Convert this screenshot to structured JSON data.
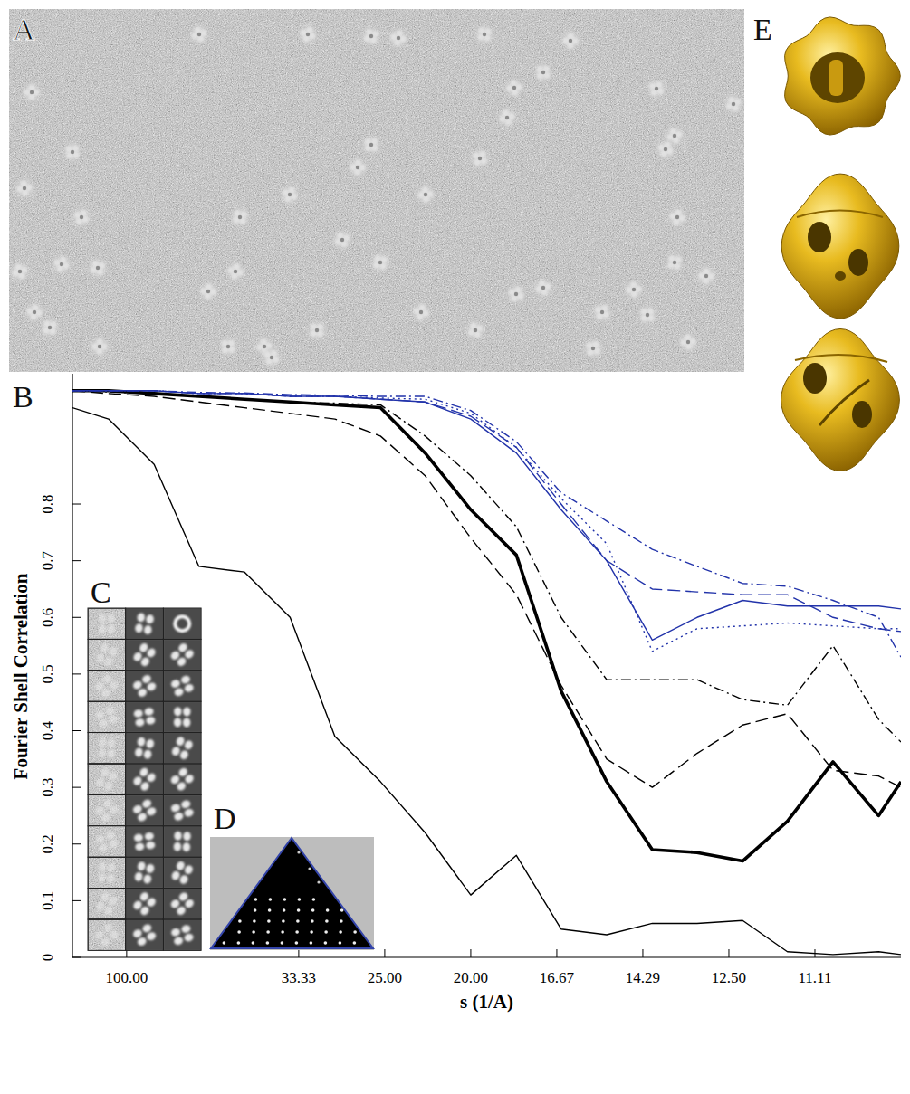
{
  "panel_labels": [
    "A",
    "B",
    "C",
    "D",
    "E"
  ],
  "chart_data": {
    "type": "line",
    "x_label": "s (1/A)",
    "y_label": "Fourier Shell Correlation",
    "xlim": [
      0.0037,
      0.1
    ],
    "ylim": [
      0,
      1.03
    ],
    "xticks": [
      {
        "value": 0.01,
        "label": "100.00"
      },
      {
        "value": 0.03,
        "label": "33.33"
      },
      {
        "value": 0.04,
        "label": "25.00"
      },
      {
        "value": 0.05,
        "label": "20.00"
      },
      {
        "value": 0.06,
        "label": "16.67"
      },
      {
        "value": 0.07,
        "label": "14.29"
      },
      {
        "value": 0.08,
        "label": "12.50"
      },
      {
        "value": 0.09,
        "label": "11.11"
      }
    ],
    "yticks": [
      0,
      0.1,
      0.2,
      0.3,
      0.4,
      0.5,
      0.6,
      0.7,
      0.8
    ],
    "grid": false,
    "x": [
      0.0037,
      0.0079,
      0.0132,
      0.0184,
      0.0237,
      0.029,
      0.0342,
      0.0395,
      0.0447,
      0.05,
      0.0553,
      0.0605,
      0.0658,
      0.0711,
      0.0763,
      0.0816,
      0.0868,
      0.0921,
      0.0974,
      0.1
    ],
    "series": [
      {
        "color": "#000000",
        "line_style": "solid",
        "values": [
          0.97,
          0.95,
          0.87,
          0.69,
          0.68,
          0.6,
          0.39,
          0.31,
          0.22,
          0.11,
          0.18,
          0.05,
          0.04,
          0.06,
          0.06,
          0.065,
          0.01,
          0.005,
          0.01,
          0.005
        ]
      },
      {
        "color": "#000000",
        "line_style": "bold",
        "values": [
          1.0,
          1.0,
          0.995,
          0.99,
          0.985,
          0.98,
          0.975,
          0.97,
          0.89,
          0.79,
          0.71,
          0.47,
          0.31,
          0.19,
          0.185,
          0.17,
          0.24,
          0.345,
          0.25,
          0.31
        ]
      },
      {
        "color": "#000000",
        "line_style": "dashed",
        "values": [
          1.0,
          0.995,
          0.99,
          0.98,
          0.97,
          0.96,
          0.95,
          0.92,
          0.85,
          0.74,
          0.64,
          0.48,
          0.35,
          0.3,
          0.36,
          0.41,
          0.43,
          0.33,
          0.32,
          0.3
        ]
      },
      {
        "color": "#000000",
        "line_style": "dashdot",
        "values": [
          1.0,
          0.998,
          0.995,
          0.99,
          0.985,
          0.98,
          0.978,
          0.975,
          0.92,
          0.85,
          0.76,
          0.6,
          0.49,
          0.49,
          0.49,
          0.455,
          0.445,
          0.55,
          0.42,
          0.38
        ]
      },
      {
        "color": "#2233aa",
        "line_style": "solid",
        "values": [
          1.0,
          1.0,
          1.0,
          0.995,
          0.995,
          0.99,
          0.99,
          0.985,
          0.98,
          0.95,
          0.89,
          0.79,
          0.7,
          0.56,
          0.6,
          0.63,
          0.62,
          0.62,
          0.62,
          0.615
        ]
      },
      {
        "color": "#2233aa",
        "line_style": "dashed",
        "values": [
          1.0,
          1.0,
          1.0,
          0.995,
          0.995,
          0.99,
          0.99,
          0.985,
          0.98,
          0.955,
          0.9,
          0.8,
          0.7,
          0.65,
          0.645,
          0.64,
          0.64,
          0.6,
          0.58,
          0.575
        ]
      },
      {
        "color": "#2233aa",
        "line_style": "dotted",
        "values": [
          1.0,
          1.0,
          1.0,
          0.995,
          0.995,
          0.99,
          0.99,
          0.987,
          0.985,
          0.96,
          0.9,
          0.81,
          0.73,
          0.54,
          0.58,
          0.585,
          0.59,
          0.585,
          0.58,
          0.58
        ]
      },
      {
        "color": "#2233aa",
        "line_style": "dashdot",
        "values": [
          1.0,
          1.0,
          1.0,
          0.997,
          0.996,
          0.993,
          0.992,
          0.99,
          0.99,
          0.965,
          0.91,
          0.82,
          0.77,
          0.72,
          0.69,
          0.66,
          0.655,
          0.63,
          0.6,
          0.53
        ]
      }
    ]
  }
}
